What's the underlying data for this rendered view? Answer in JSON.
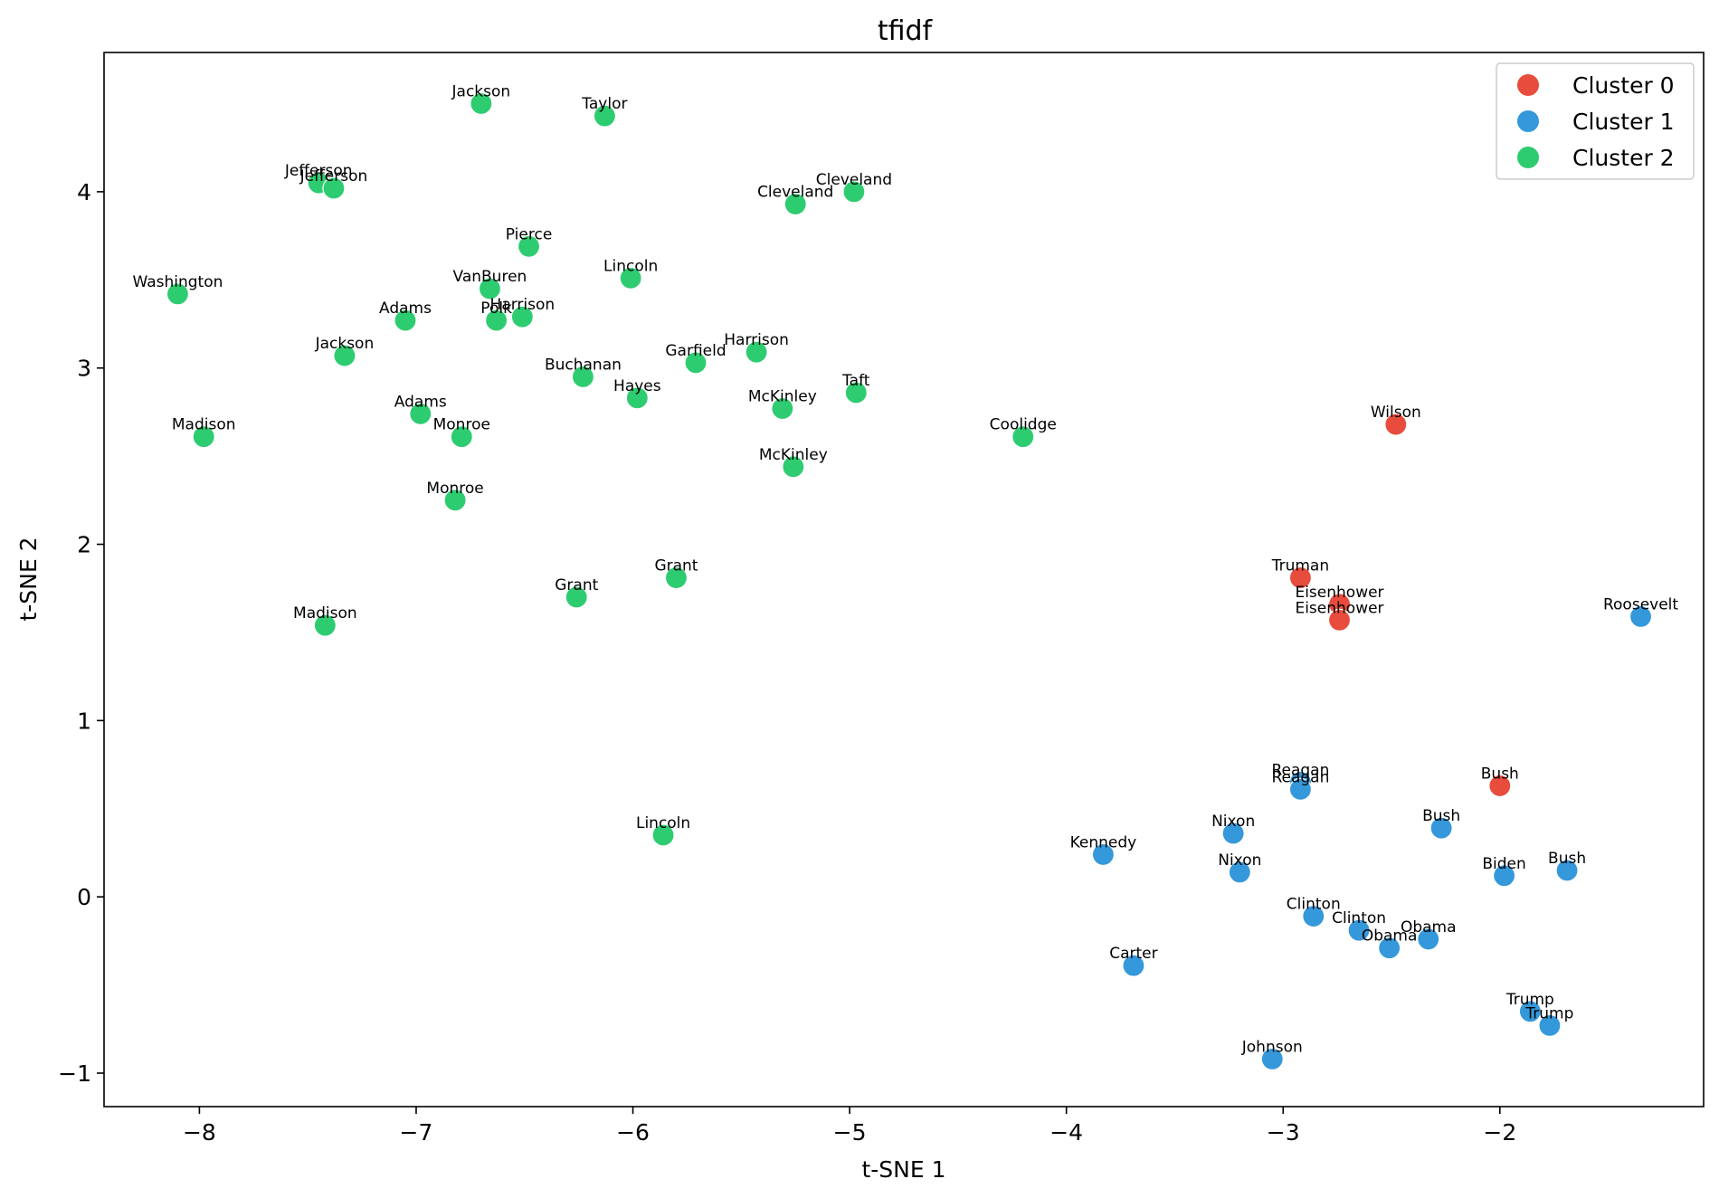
{
  "chart_data": {
    "type": "scatter",
    "title": "tfidf",
    "xlabel": "t-SNE 1",
    "ylabel": "t-SNE 2",
    "xlim": [
      -8.44,
      -1.06
    ],
    "ylim": [
      -1.19,
      4.79
    ],
    "xticks": [
      -8,
      -7,
      -6,
      -5,
      -4,
      -3,
      -2
    ],
    "yticks": [
      -1,
      0,
      1,
      2,
      3,
      4
    ],
    "xtick_labels": [
      "−8",
      "−7",
      "−6",
      "−5",
      "−4",
      "−3",
      "−2"
    ],
    "ytick_labels": [
      "−1",
      "0",
      "1",
      "2",
      "3",
      "4"
    ],
    "grid": false,
    "legend_position": "top-right",
    "series": [
      {
        "name": "Cluster 0",
        "color": "#e74c3c",
        "points": [
          {
            "label": "Wilson",
            "x": -2.48,
            "y": 2.68
          },
          {
            "label": "Truman",
            "x": -2.92,
            "y": 1.81
          },
          {
            "label": "Eisenhower",
            "x": -2.74,
            "y": 1.66
          },
          {
            "label": "Eisenhower",
            "x": -2.74,
            "y": 1.57
          },
          {
            "label": "Bush",
            "x": -2.0,
            "y": 0.63
          }
        ]
      },
      {
        "name": "Cluster 1",
        "color": "#3498db",
        "points": [
          {
            "label": "Roosevelt",
            "x": -1.35,
            "y": 1.59
          },
          {
            "label": "Reagan",
            "x": -2.92,
            "y": 0.65
          },
          {
            "label": "Reagan",
            "x": -2.92,
            "y": 0.61
          },
          {
            "label": "Bush",
            "x": -2.27,
            "y": 0.39
          },
          {
            "label": "Nixon",
            "x": -3.23,
            "y": 0.36
          },
          {
            "label": "Kennedy",
            "x": -3.83,
            "y": 0.24
          },
          {
            "label": "Nixon",
            "x": -3.2,
            "y": 0.14
          },
          {
            "label": "Biden",
            "x": -1.98,
            "y": 0.12
          },
          {
            "label": "Bush",
            "x": -1.69,
            "y": 0.15
          },
          {
            "label": "Clinton",
            "x": -2.86,
            "y": -0.11
          },
          {
            "label": "Clinton",
            "x": -2.65,
            "y": -0.19
          },
          {
            "label": "Obama",
            "x": -2.33,
            "y": -0.24
          },
          {
            "label": "Obama",
            "x": -2.51,
            "y": -0.29
          },
          {
            "label": "Carter",
            "x": -3.69,
            "y": -0.39
          },
          {
            "label": "Trump",
            "x": -1.86,
            "y": -0.65
          },
          {
            "label": "Trump",
            "x": -1.77,
            "y": -0.73
          },
          {
            "label": "Johnson",
            "x": -3.05,
            "y": -0.92
          }
        ]
      },
      {
        "name": "Cluster 2",
        "color": "#2ecc71",
        "points": [
          {
            "label": "Jackson",
            "x": -6.7,
            "y": 4.5
          },
          {
            "label": "Taylor",
            "x": -6.13,
            "y": 4.43
          },
          {
            "label": "Jefferson",
            "x": -7.45,
            "y": 4.05
          },
          {
            "label": "Jefferson",
            "x": -7.38,
            "y": 4.02
          },
          {
            "label": "Cleveland",
            "x": -4.98,
            "y": 4.0
          },
          {
            "label": "Cleveland",
            "x": -5.25,
            "y": 3.93
          },
          {
            "label": "Pierce",
            "x": -6.48,
            "y": 3.69
          },
          {
            "label": "Lincoln",
            "x": -6.01,
            "y": 3.51
          },
          {
            "label": "Washington",
            "x": -8.1,
            "y": 3.42
          },
          {
            "label": "VanBuren",
            "x": -6.66,
            "y": 3.45
          },
          {
            "label": "Harrison",
            "x": -6.51,
            "y": 3.29
          },
          {
            "label": "Polk",
            "x": -6.63,
            "y": 3.27
          },
          {
            "label": "Adams",
            "x": -7.05,
            "y": 3.27
          },
          {
            "label": "Jackson",
            "x": -7.33,
            "y": 3.07
          },
          {
            "label": "Harrison",
            "x": -5.43,
            "y": 3.09
          },
          {
            "label": "Garfield",
            "x": -5.71,
            "y": 3.03
          },
          {
            "label": "Buchanan",
            "x": -6.23,
            "y": 2.95
          },
          {
            "label": "Taft",
            "x": -4.97,
            "y": 2.86
          },
          {
            "label": "Hayes",
            "x": -5.98,
            "y": 2.83
          },
          {
            "label": "McKinley",
            "x": -5.31,
            "y": 2.77
          },
          {
            "label": "Adams",
            "x": -6.98,
            "y": 2.74
          },
          {
            "label": "Madison",
            "x": -7.98,
            "y": 2.61
          },
          {
            "label": "Monroe",
            "x": -6.79,
            "y": 2.61
          },
          {
            "label": "Coolidge",
            "x": -4.2,
            "y": 2.61
          },
          {
            "label": "McKinley",
            "x": -5.26,
            "y": 2.44
          },
          {
            "label": "Monroe",
            "x": -6.82,
            "y": 2.25
          },
          {
            "label": "Grant",
            "x": -5.8,
            "y": 1.81
          },
          {
            "label": "Grant",
            "x": -6.26,
            "y": 1.7
          },
          {
            "label": "Madison",
            "x": -7.42,
            "y": 1.54
          },
          {
            "label": "Lincoln",
            "x": -5.86,
            "y": 0.35
          }
        ]
      }
    ]
  }
}
